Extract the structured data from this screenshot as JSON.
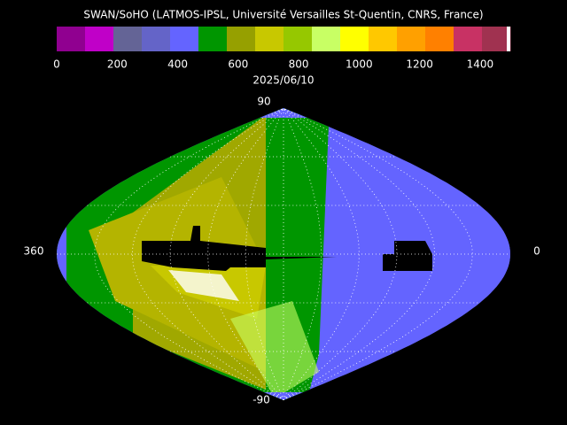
{
  "title": "SWAN/SoHO (LATMOS-IPSL, Université Versailles St-Quentin, CNRS, France)",
  "colorbar": {
    "range": [
      0,
      1500
    ],
    "ticks": [
      0,
      200,
      400,
      600,
      800,
      1000,
      1200,
      1400
    ],
    "colors": [
      "#900090",
      "#c000c8",
      "#646496",
      "#6464c8",
      "#6464ff",
      "#009600",
      "#96a000",
      "#c8c800",
      "#96c800",
      "#c8ff64",
      "#ffff00",
      "#ffc800",
      "#ffa000",
      "#ff8000",
      "#c83264",
      "#a03250"
    ]
  },
  "date": "2025/06/10",
  "labels": {
    "top": "90",
    "bottom": "-90",
    "left": "360",
    "right": "0"
  }
}
